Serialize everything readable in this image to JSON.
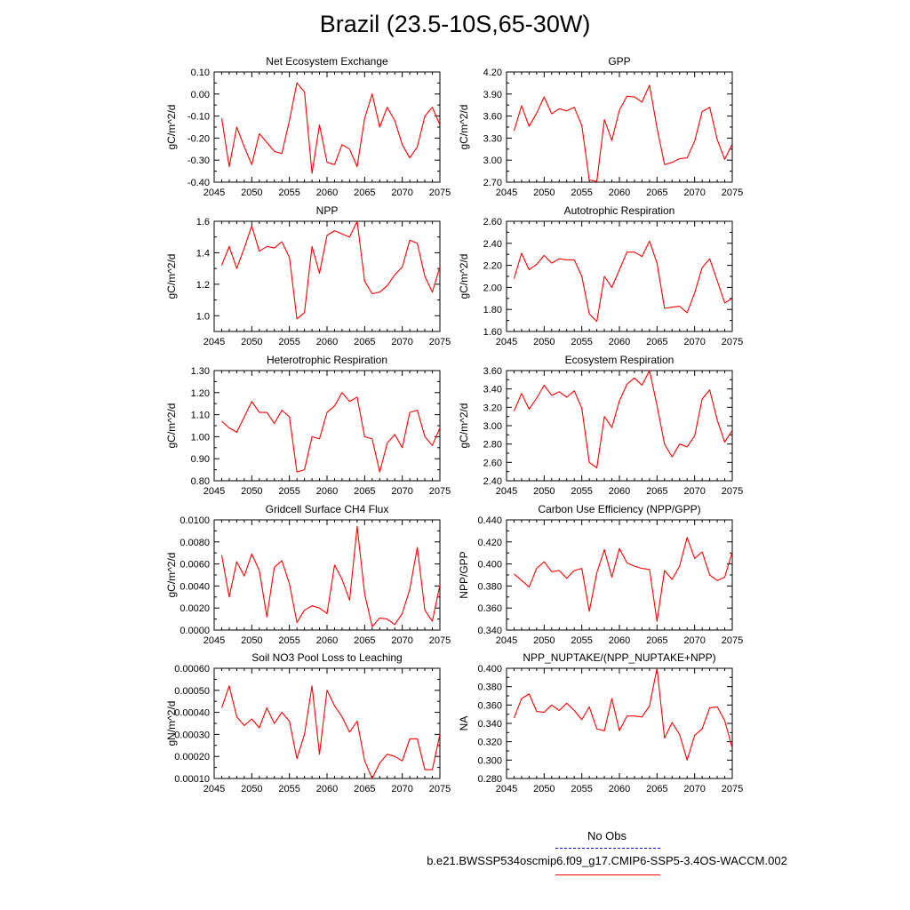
{
  "figure": {
    "title": "Brazil (23.5-10S,65-30W)",
    "legend": {
      "obs_label": "No Obs",
      "obs_color": "#0000ff",
      "case_label": "b.e21.BWSSP534oscmip6.f09_g17.CMIP6-SSP5-3.4OS-WACCM.002",
      "case_color": "#ff0000"
    }
  },
  "chart_data": [
    {
      "type": "line",
      "title": "Net Ecosystem Exchange",
      "ylabel": "gC/m^2/d",
      "x": [
        2046,
        2047,
        2048,
        2049,
        2050,
        2051,
        2052,
        2053,
        2054,
        2055,
        2056,
        2057,
        2058,
        2059,
        2060,
        2061,
        2062,
        2063,
        2064,
        2065,
        2066,
        2067,
        2068,
        2069,
        2070,
        2071,
        2072,
        2073,
        2074,
        2075
      ],
      "series": [
        {
          "color": "#ff0000",
          "values": [
            -0.11,
            -0.33,
            -0.15,
            -0.24,
            -0.32,
            -0.18,
            -0.22,
            -0.26,
            -0.27,
            -0.12,
            0.05,
            0.01,
            -0.36,
            -0.14,
            -0.31,
            -0.32,
            -0.23,
            -0.25,
            -0.33,
            -0.11,
            0.0,
            -0.15,
            -0.06,
            -0.12,
            -0.23,
            -0.29,
            -0.24,
            -0.1,
            -0.06,
            -0.14
          ]
        }
      ],
      "xlim": [
        2045,
        2075
      ],
      "ylim": [
        -0.4,
        0.1
      ],
      "xticks": [
        "2045",
        "2050",
        "2055",
        "2060",
        "2065",
        "2070",
        "2075"
      ],
      "yticks": [
        "-0.40",
        "-0.30",
        "-0.20",
        "-0.10",
        "0.00",
        "0.10"
      ]
    },
    {
      "type": "line",
      "title": "GPP",
      "ylabel": "gC/m^2/d",
      "x": [
        2046,
        2047,
        2048,
        2049,
        2050,
        2051,
        2052,
        2053,
        2054,
        2055,
        2056,
        2057,
        2058,
        2059,
        2060,
        2061,
        2062,
        2063,
        2064,
        2065,
        2066,
        2067,
        2068,
        2069,
        2070,
        2071,
        2072,
        2073,
        2074,
        2075
      ],
      "series": [
        {
          "color": "#ff0000",
          "values": [
            3.4,
            3.74,
            3.46,
            3.64,
            3.86,
            3.63,
            3.7,
            3.67,
            3.72,
            3.47,
            2.73,
            2.71,
            3.55,
            3.27,
            3.68,
            3.87,
            3.86,
            3.79,
            4.02,
            3.44,
            2.94,
            2.97,
            3.02,
            3.03,
            3.26,
            3.66,
            3.72,
            3.28,
            3.01,
            3.22
          ]
        }
      ],
      "xlim": [
        2045,
        2075
      ],
      "ylim": [
        2.7,
        4.2
      ],
      "xticks": [
        "2045",
        "2050",
        "2055",
        "2060",
        "2065",
        "2070",
        "2075"
      ],
      "yticks": [
        "2.70",
        "3.00",
        "3.30",
        "3.60",
        "3.90",
        "4.20"
      ]
    },
    {
      "type": "line",
      "title": "NPP",
      "ylabel": "gC/m^2/d",
      "x": [
        2046,
        2047,
        2048,
        2049,
        2050,
        2051,
        2052,
        2053,
        2054,
        2055,
        2056,
        2057,
        2058,
        2059,
        2060,
        2061,
        2062,
        2063,
        2064,
        2065,
        2066,
        2067,
        2068,
        2069,
        2070,
        2071,
        2072,
        2073,
        2074,
        2075
      ],
      "series": [
        {
          "color": "#ff0000",
          "values": [
            1.32,
            1.44,
            1.3,
            1.43,
            1.57,
            1.41,
            1.44,
            1.43,
            1.47,
            1.37,
            0.98,
            1.02,
            1.44,
            1.27,
            1.51,
            1.54,
            1.52,
            1.5,
            1.6,
            1.22,
            1.14,
            1.15,
            1.19,
            1.26,
            1.31,
            1.48,
            1.46,
            1.25,
            1.15,
            1.31
          ]
        }
      ],
      "xlim": [
        2045,
        2075
      ],
      "ylim": [
        0.9,
        1.6
      ],
      "xticks": [
        "2045",
        "2050",
        "2055",
        "2060",
        "2065",
        "2070",
        "2075"
      ],
      "yticks": [
        "1.0",
        "1.2",
        "1.4",
        "1.6"
      ]
    },
    {
      "type": "line",
      "title": "Autotrophic Respiration",
      "ylabel": "gC/m^2/d",
      "x": [
        2046,
        2047,
        2048,
        2049,
        2050,
        2051,
        2052,
        2053,
        2054,
        2055,
        2056,
        2057,
        2058,
        2059,
        2060,
        2061,
        2062,
        2063,
        2064,
        2065,
        2066,
        2067,
        2068,
        2069,
        2070,
        2071,
        2072,
        2073,
        2074,
        2075
      ],
      "series": [
        {
          "color": "#ff0000",
          "values": [
            2.08,
            2.31,
            2.16,
            2.21,
            2.29,
            2.22,
            2.26,
            2.25,
            2.25,
            2.1,
            1.76,
            1.69,
            2.1,
            2.0,
            2.16,
            2.32,
            2.32,
            2.28,
            2.42,
            2.22,
            1.81,
            1.82,
            1.83,
            1.77,
            1.95,
            2.18,
            2.26,
            2.06,
            1.86,
            1.9
          ]
        }
      ],
      "xlim": [
        2045,
        2075
      ],
      "ylim": [
        1.6,
        2.6
      ],
      "xticks": [
        "2045",
        "2050",
        "2055",
        "2060",
        "2065",
        "2070",
        "2075"
      ],
      "yticks": [
        "1.60",
        "1.80",
        "2.00",
        "2.20",
        "2.40",
        "2.60"
      ]
    },
    {
      "type": "line",
      "title": "Heterotrophic Respiration",
      "ylabel": "gC/m^2/d",
      "x": [
        2046,
        2047,
        2048,
        2049,
        2050,
        2051,
        2052,
        2053,
        2054,
        2055,
        2056,
        2057,
        2058,
        2059,
        2060,
        2061,
        2062,
        2063,
        2064,
        2065,
        2066,
        2067,
        2068,
        2069,
        2070,
        2071,
        2072,
        2073,
        2074,
        2075
      ],
      "series": [
        {
          "color": "#ff0000",
          "values": [
            1.07,
            1.04,
            1.02,
            1.09,
            1.16,
            1.11,
            1.11,
            1.06,
            1.12,
            1.09,
            0.84,
            0.85,
            1.0,
            0.99,
            1.11,
            1.14,
            1.2,
            1.16,
            1.18,
            1.0,
            0.99,
            0.84,
            0.97,
            1.01,
            0.95,
            1.11,
            1.12,
            1.0,
            0.96,
            1.04
          ]
        }
      ],
      "xlim": [
        2045,
        2075
      ],
      "ylim": [
        0.8,
        1.3
      ],
      "xticks": [
        "2045",
        "2050",
        "2055",
        "2060",
        "2065",
        "2070",
        "2075"
      ],
      "yticks": [
        "0.80",
        "0.90",
        "1.00",
        "1.10",
        "1.20",
        "1.30"
      ]
    },
    {
      "type": "line",
      "title": "Ecosystem Respiration",
      "ylabel": "gC/m^2/d",
      "x": [
        2046,
        2047,
        2048,
        2049,
        2050,
        2051,
        2052,
        2053,
        2054,
        2055,
        2056,
        2057,
        2058,
        2059,
        2060,
        2061,
        2062,
        2063,
        2064,
        2065,
        2066,
        2067,
        2068,
        2069,
        2070,
        2071,
        2072,
        2073,
        2074,
        2075
      ],
      "series": [
        {
          "color": "#ff0000",
          "values": [
            3.16,
            3.35,
            3.18,
            3.3,
            3.44,
            3.33,
            3.37,
            3.31,
            3.38,
            3.19,
            2.6,
            2.54,
            3.1,
            2.98,
            3.27,
            3.45,
            3.52,
            3.44,
            3.6,
            3.22,
            2.8,
            2.66,
            2.8,
            2.77,
            2.89,
            3.29,
            3.39,
            3.06,
            2.82,
            2.95
          ]
        }
      ],
      "xlim": [
        2045,
        2075
      ],
      "ylim": [
        2.4,
        3.6
      ],
      "xticks": [
        "2045",
        "2050",
        "2055",
        "2060",
        "2065",
        "2070",
        "2075"
      ],
      "yticks": [
        "2.40",
        "2.60",
        "2.80",
        "3.00",
        "3.20",
        "3.40",
        "3.60"
      ]
    },
    {
      "type": "line",
      "title": "Gridcell Surface CH4 Flux",
      "ylabel": "gC/m^2/d",
      "x": [
        2046,
        2047,
        2048,
        2049,
        2050,
        2051,
        2052,
        2053,
        2054,
        2055,
        2056,
        2057,
        2058,
        2059,
        2060,
        2061,
        2062,
        2063,
        2064,
        2065,
        2066,
        2067,
        2068,
        2069,
        2070,
        2071,
        2072,
        2073,
        2074,
        2075
      ],
      "series": [
        {
          "color": "#ff0000",
          "values": [
            0.0068,
            0.003,
            0.0062,
            0.0049,
            0.0069,
            0.0054,
            0.0012,
            0.0057,
            0.0063,
            0.0042,
            0.0007,
            0.0018,
            0.0022,
            0.002,
            0.0015,
            0.0059,
            0.0046,
            0.0027,
            0.0094,
            0.0033,
            0.0003,
            0.0011,
            0.001,
            0.0005,
            0.0015,
            0.0037,
            0.0075,
            0.0018,
            0.0008,
            0.0041
          ]
        }
      ],
      "xlim": [
        2045,
        2075
      ],
      "ylim": [
        0.0,
        0.01
      ],
      "xticks": [
        "2045",
        "2050",
        "2055",
        "2060",
        "2065",
        "2070",
        "2075"
      ],
      "yticks": [
        "0.0000",
        "0.0020",
        "0.0040",
        "0.0060",
        "0.0080",
        "0.0100"
      ]
    },
    {
      "type": "line",
      "title": "Carbon Use Efficiency (NPP/GPP)",
      "ylabel": "NPP/GPP",
      "x": [
        2046,
        2047,
        2048,
        2049,
        2050,
        2051,
        2052,
        2053,
        2054,
        2055,
        2056,
        2057,
        2058,
        2059,
        2060,
        2061,
        2062,
        2063,
        2064,
        2065,
        2066,
        2067,
        2068,
        2069,
        2070,
        2071,
        2072,
        2073,
        2074,
        2075
      ],
      "series": [
        {
          "color": "#ff0000",
          "values": [
            0.391,
            0.385,
            0.379,
            0.396,
            0.402,
            0.393,
            0.394,
            0.387,
            0.394,
            0.396,
            0.357,
            0.392,
            0.413,
            0.388,
            0.414,
            0.401,
            0.398,
            0.396,
            0.395,
            0.348,
            0.394,
            0.386,
            0.398,
            0.424,
            0.405,
            0.411,
            0.39,
            0.385,
            0.388,
            0.411
          ]
        }
      ],
      "xlim": [
        2045,
        2075
      ],
      "ylim": [
        0.34,
        0.44
      ],
      "xticks": [
        "2045",
        "2050",
        "2055",
        "2060",
        "2065",
        "2070",
        "2075"
      ],
      "yticks": [
        "0.340",
        "0.360",
        "0.380",
        "0.400",
        "0.420",
        "0.440"
      ]
    },
    {
      "type": "line",
      "title": "Soil NO3 Pool Loss to Leaching",
      "ylabel": "gN/m^2/d",
      "x": [
        2046,
        2047,
        2048,
        2049,
        2050,
        2051,
        2052,
        2053,
        2054,
        2055,
        2056,
        2057,
        2058,
        2059,
        2060,
        2061,
        2062,
        2063,
        2064,
        2065,
        2066,
        2067,
        2068,
        2069,
        2070,
        2071,
        2072,
        2073,
        2074,
        2075
      ],
      "series": [
        {
          "color": "#ff0000",
          "values": [
            0.00042,
            0.00052,
            0.00038,
            0.00034,
            0.00037,
            0.00033,
            0.00042,
            0.00035,
            0.0004,
            0.00036,
            0.00019,
            0.0003,
            0.00052,
            0.00021,
            0.0005,
            0.00043,
            0.00038,
            0.00031,
            0.00036,
            0.00018,
            0.0001,
            0.00017,
            0.00021,
            0.0002,
            0.00018,
            0.00028,
            0.00028,
            0.00014,
            0.00014,
            0.0003
          ]
        }
      ],
      "xlim": [
        2045,
        2075
      ],
      "ylim": [
        0.0001,
        0.0006
      ],
      "xticks": [
        "2045",
        "2050",
        "2055",
        "2060",
        "2065",
        "2070",
        "2075"
      ],
      "yticks": [
        "0.00010",
        "0.00020",
        "0.00030",
        "0.00040",
        "0.00050",
        "0.00060"
      ]
    },
    {
      "type": "line",
      "title": "NPP_NUPTAKE/(NPP_NUPTAKE+NPP)",
      "ylabel": "NA",
      "x": [
        2046,
        2047,
        2048,
        2049,
        2050,
        2051,
        2052,
        2053,
        2054,
        2055,
        2056,
        2057,
        2058,
        2059,
        2060,
        2061,
        2062,
        2063,
        2064,
        2065,
        2066,
        2067,
        2068,
        2069,
        2070,
        2071,
        2072,
        2073,
        2074,
        2075
      ],
      "series": [
        {
          "color": "#ff0000",
          "values": [
            0.346,
            0.367,
            0.372,
            0.353,
            0.352,
            0.36,
            0.354,
            0.362,
            0.354,
            0.344,
            0.358,
            0.334,
            0.332,
            0.367,
            0.332,
            0.348,
            0.348,
            0.347,
            0.359,
            0.4,
            0.324,
            0.341,
            0.328,
            0.3,
            0.327,
            0.334,
            0.357,
            0.358,
            0.343,
            0.313
          ]
        }
      ],
      "xlim": [
        2045,
        2075
      ],
      "ylim": [
        0.28,
        0.4
      ],
      "xticks": [
        "2045",
        "2050",
        "2055",
        "2060",
        "2065",
        "2070",
        "2075"
      ],
      "yticks": [
        "0.280",
        "0.300",
        "0.320",
        "0.340",
        "0.360",
        "0.380",
        "0.400"
      ]
    }
  ]
}
